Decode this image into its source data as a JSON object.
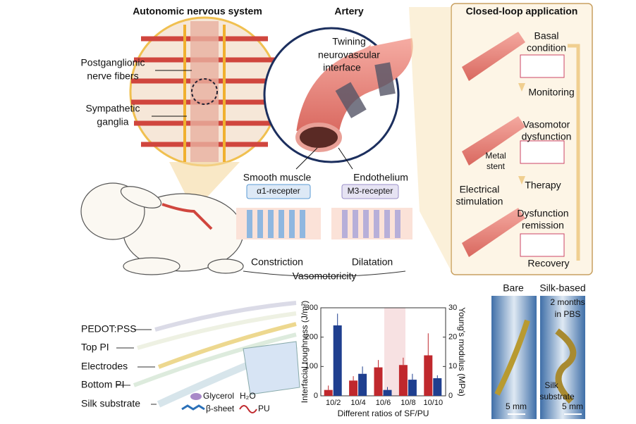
{
  "header": {
    "nervous_system": "Autonomic  nervous system",
    "artery": "Artery",
    "closed_loop": "Closed-loop application"
  },
  "nervous_panel": {
    "fibers": [
      "Postganglionic",
      "nerve fibers"
    ],
    "ganglia": [
      "Sympathetic",
      "ganglia"
    ]
  },
  "artery_panel": {
    "interface": [
      "Twining",
      "neurovascular",
      "interface"
    ],
    "smooth_muscle": "Smooth muscle",
    "endothelium": "Endothelium",
    "alpha_receptor": "α1-recepter",
    "m3_receptor": "M3-recepter",
    "constriction": "Constriction",
    "dilatation": "Dilatation",
    "vasomotoricity": "Vasomotoricity"
  },
  "closed_loop_panel": {
    "basal": [
      "Basal",
      "condition"
    ],
    "monitoring": "Monitoring",
    "dysfunction": [
      "Vasomotor",
      "dysfunction"
    ],
    "stent": [
      "Metal",
      "stent"
    ],
    "therapy": "Therapy",
    "stimulation": [
      "Electrical",
      "stimulation"
    ],
    "remission": [
      "Dysfunction",
      "remission"
    ],
    "recovery": "Recovery"
  },
  "device_panel": {
    "layers": [
      "PEDOT:PSS",
      "Top PI",
      "Electrodes",
      "Bottom PI",
      "Silk substrate"
    ],
    "glycerol": "Glycerol",
    "water": "H₂O",
    "beta_sheet": "β-sheet",
    "pu": "PU"
  },
  "photo_panel": {
    "bare": "Bare",
    "silk_based": "Silk-based",
    "duration": [
      "2 months",
      "in PBS"
    ],
    "substrate": [
      "Silk",
      "substrate"
    ],
    "scale_left": "5 mm",
    "scale_right": "5 mm"
  },
  "chart_data": {
    "type": "bar",
    "categories": [
      "10/2",
      "10/4",
      "10/6",
      "10/8",
      "10/10"
    ],
    "xlabel": "Different ratios of SF/PU",
    "ylabel": "Interfacial toughness (J/m²)",
    "y2label": "Young's modulus (MPa)",
    "ylim": [
      0,
      300
    ],
    "yticks": [
      0,
      100,
      200,
      300
    ],
    "y2lim": [
      0,
      30
    ],
    "y2ticks": [
      0,
      10,
      20,
      30
    ],
    "series": [
      {
        "color": "#c0282d",
        "values": [
          20,
          52,
          97,
          105,
          138
        ],
        "errors": [
          15,
          15,
          25,
          25,
          75
        ]
      },
      {
        "color": "#1f3f8f",
        "axis": "y2",
        "values": [
          24,
          7.5,
          2,
          5.5,
          6
        ],
        "errors": [
          4,
          2.5,
          1,
          2,
          1
        ]
      }
    ]
  }
}
